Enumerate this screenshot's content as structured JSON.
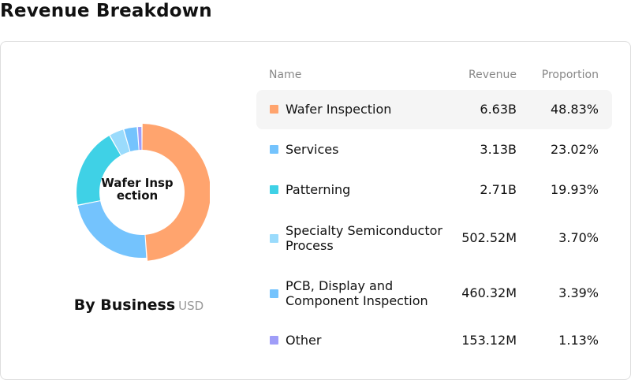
{
  "page": {
    "title": "Revenue Breakdown"
  },
  "donut": {
    "center_label": "Wafer Inspection",
    "caption": "By Business",
    "unit": "USD"
  },
  "table": {
    "headers": {
      "name": "Name",
      "revenue": "Revenue",
      "proportion": "Proportion"
    }
  },
  "chart_data": {
    "type": "pie",
    "variant": "donut",
    "title": "By Business",
    "unit": "USD",
    "active_slice": "Wafer Inspection",
    "slices": [
      {
        "name": "Wafer Inspection",
        "revenue": "6.63B",
        "proportion": "48.83%",
        "value": 48.83,
        "color": "#ffa46e"
      },
      {
        "name": "Services",
        "revenue": "3.13B",
        "proportion": "23.02%",
        "value": 23.02,
        "color": "#74c3fd"
      },
      {
        "name": "Patterning",
        "revenue": "2.71B",
        "proportion": "19.93%",
        "value": 19.93,
        "color": "#3fd1e6"
      },
      {
        "name": "Specialty Semiconductor Process",
        "revenue": "502.52M",
        "proportion": "3.70%",
        "value": 3.7,
        "color": "#9adbfc"
      },
      {
        "name": "PCB, Display and Component Inspection",
        "revenue": "460.32M",
        "proportion": "3.39%",
        "value": 3.39,
        "color": "#74c3fd"
      },
      {
        "name": "Other",
        "revenue": "153.12M",
        "proportion": "1.13%",
        "value": 1.13,
        "color": "#9f9df8"
      }
    ]
  }
}
